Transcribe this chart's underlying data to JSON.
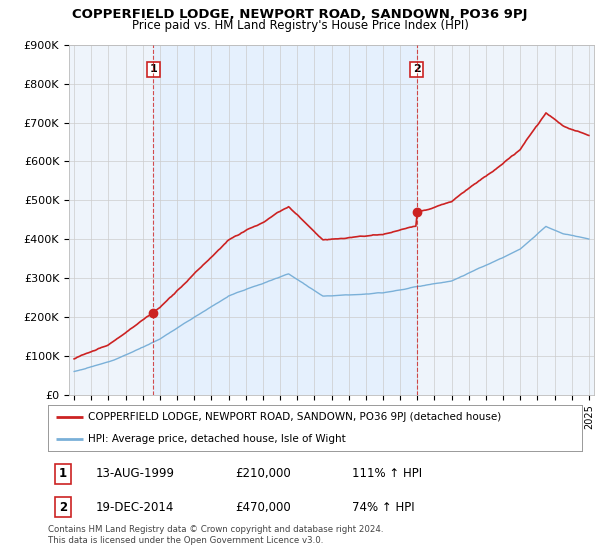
{
  "title": "COPPERFIELD LODGE, NEWPORT ROAD, SANDOWN, PO36 9PJ",
  "subtitle": "Price paid vs. HM Land Registry's House Price Index (HPI)",
  "background_color": "#ffffff",
  "chart_bg_color": "#eef4fb",
  "grid_color": "#cccccc",
  "sale1_date": "13-AUG-1999",
  "sale1_price": 210000,
  "sale1_hpi": "111% ↑ HPI",
  "sale2_date": "19-DEC-2014",
  "sale2_price": 470000,
  "sale2_hpi": "74% ↑ HPI",
  "legend_label_red": "COPPERFIELD LODGE, NEWPORT ROAD, SANDOWN, PO36 9PJ (detached house)",
  "legend_label_blue": "HPI: Average price, detached house, Isle of Wight",
  "footnote": "Contains HM Land Registry data © Crown copyright and database right 2024.\nThis data is licensed under the Open Government Licence v3.0.",
  "red_color": "#cc2222",
  "blue_color": "#7ab0d8",
  "sale1_x": 1999.62,
  "sale2_x": 2014.97,
  "ylim": [
    0,
    900000
  ],
  "xlim_left": 1994.7,
  "xlim_right": 2025.3
}
